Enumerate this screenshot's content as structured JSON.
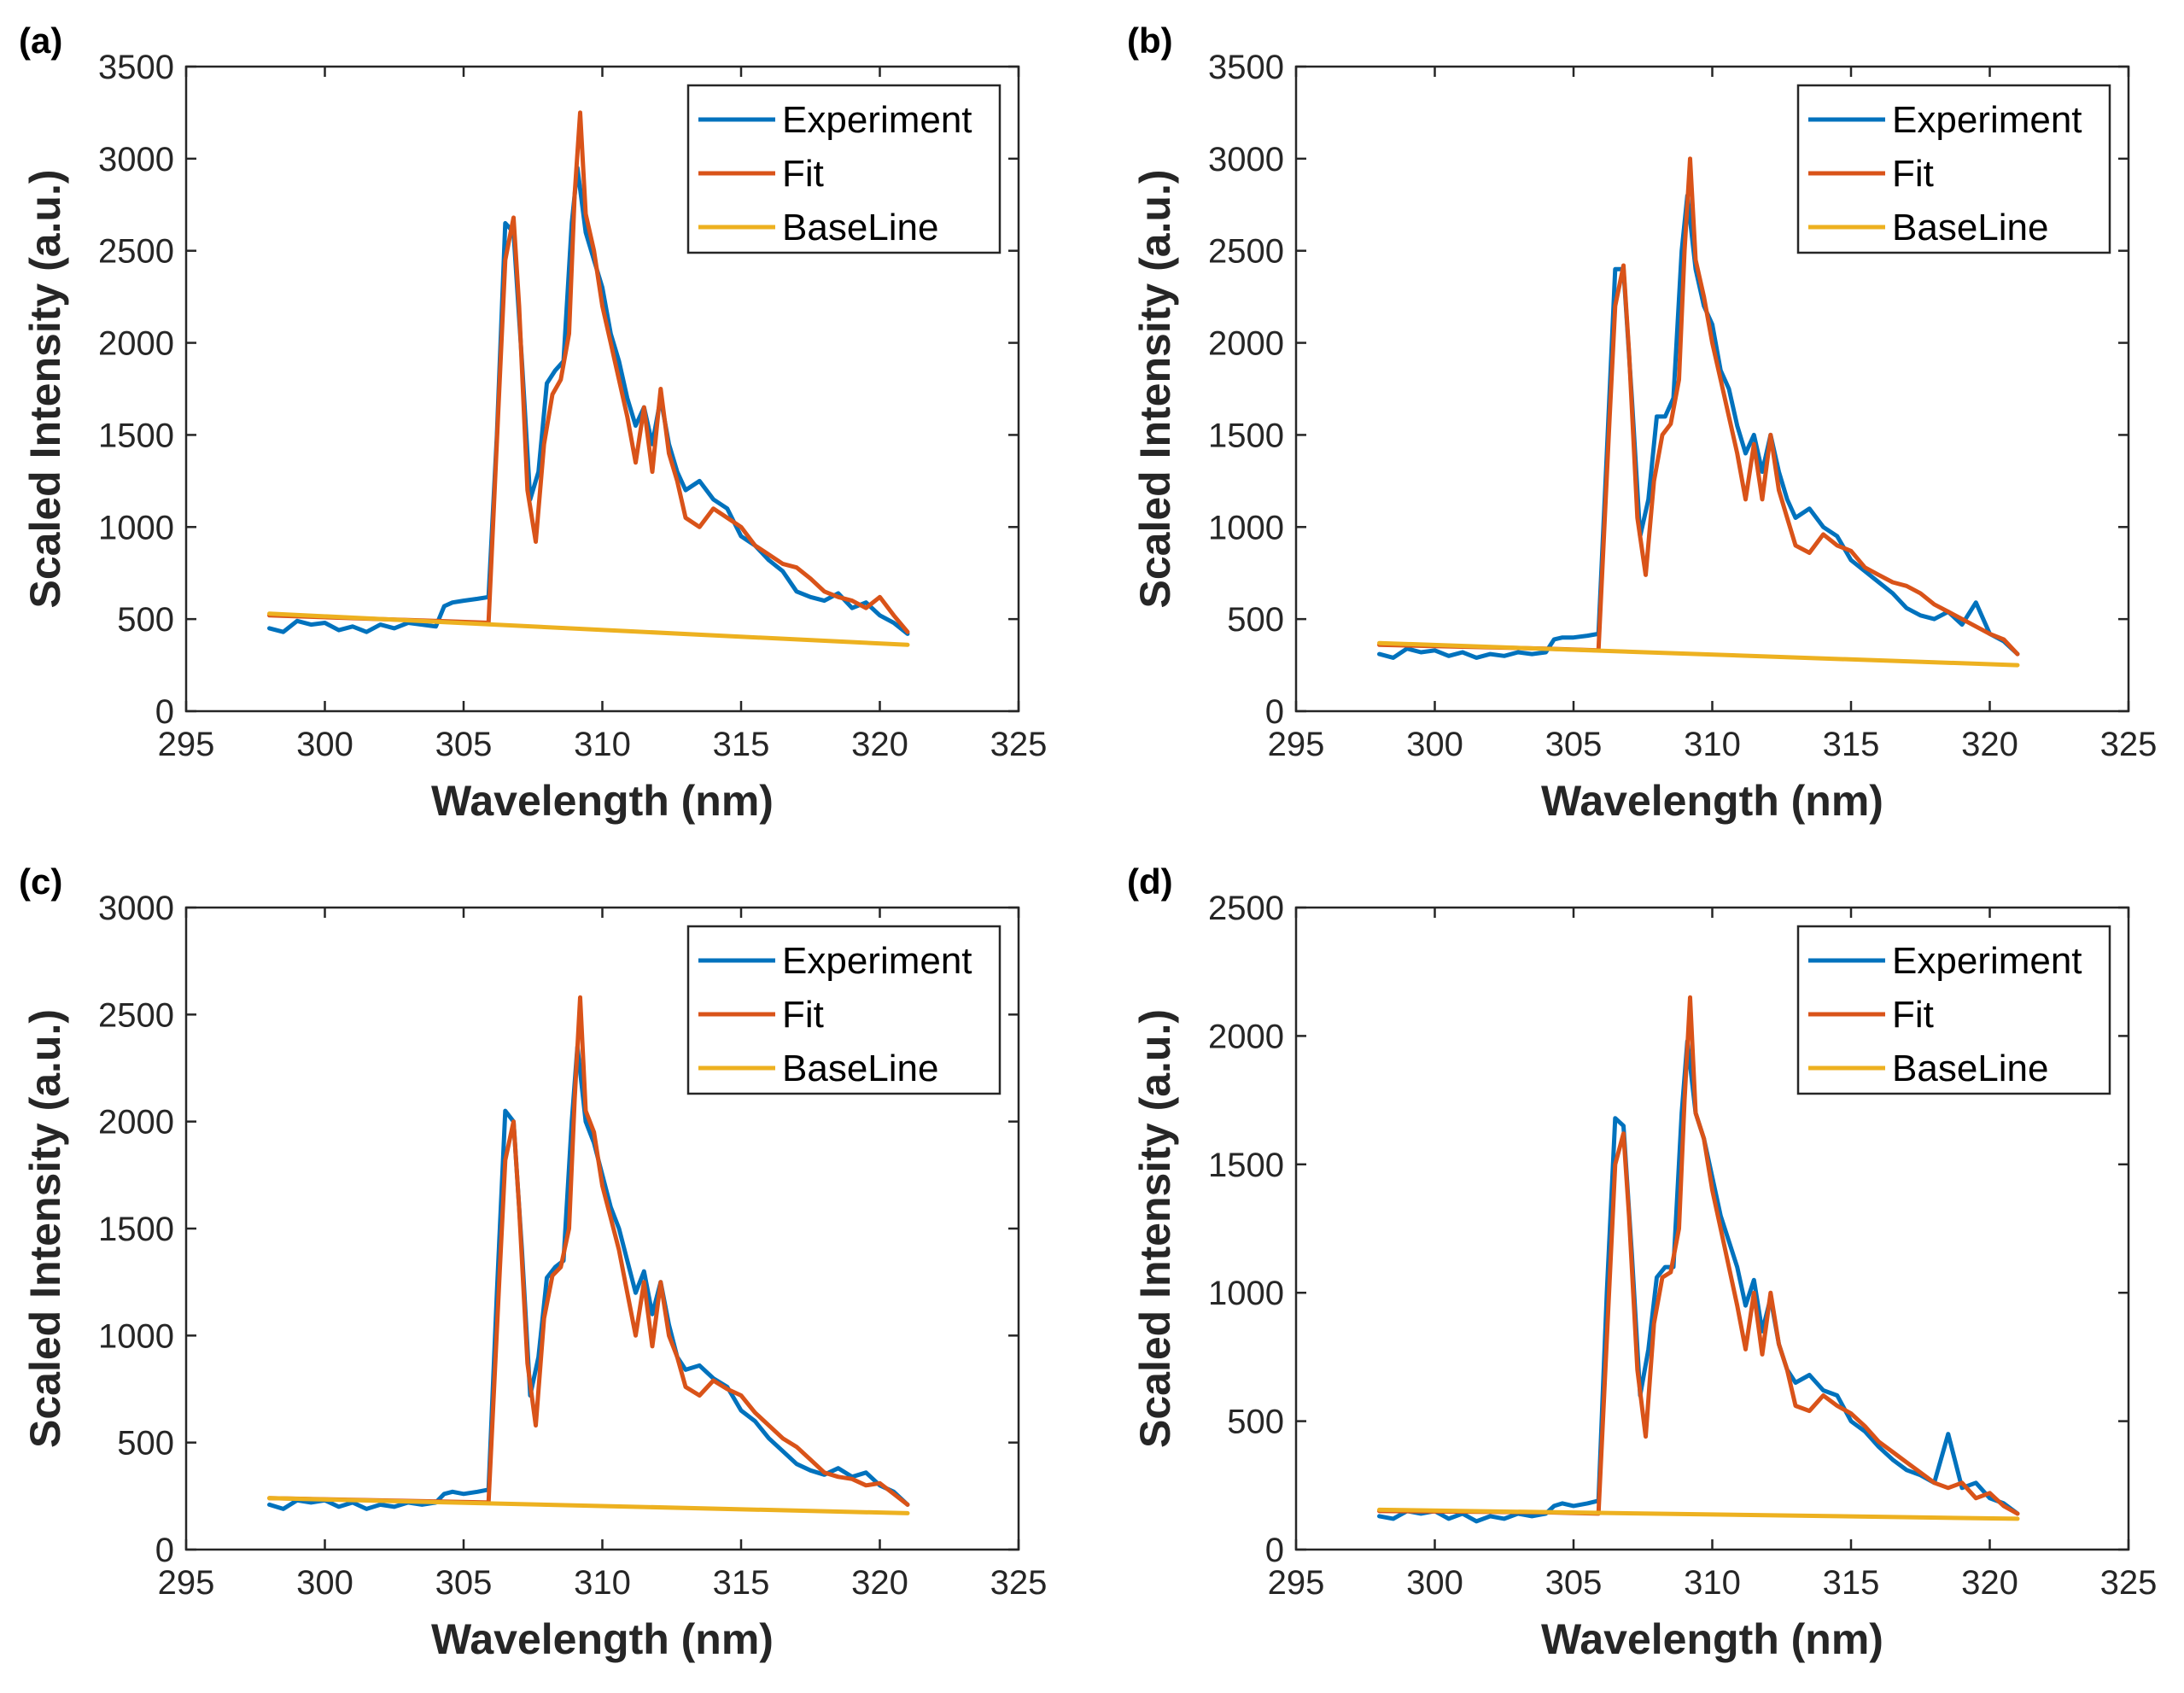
{
  "colors": {
    "experiment": "#0072BD",
    "fit": "#D95319",
    "baseline": "#EDB120",
    "axis": "#262626"
  },
  "chart_data": [
    {
      "panel_label": "(a)",
      "type": "line",
      "xlabel": "Wavelength (nm)",
      "ylabel": "Scaled Intensity (a.u.)",
      "xlim": [
        295,
        325
      ],
      "ylim": [
        0,
        3500
      ],
      "xticks": [
        "295",
        "300",
        "305",
        "310",
        "315",
        "320",
        "325"
      ],
      "yticks": [
        "0",
        "500",
        "1000",
        "1500",
        "2000",
        "2500",
        "3000",
        "3500"
      ],
      "legend": [
        "Experiment",
        "Fit",
        "BaseLine"
      ],
      "legend_position": "top-right",
      "series": [
        {
          "name": "Experiment",
          "x": [
            298.0,
            298.5,
            299.0,
            299.5,
            300.0,
            300.5,
            301.0,
            301.5,
            302.0,
            302.5,
            303.0,
            303.5,
            304.0,
            304.3,
            304.6,
            305.0,
            305.5,
            305.9,
            306.2,
            306.5,
            306.8,
            307.1,
            307.4,
            307.7,
            308.0,
            308.3,
            308.6,
            308.9,
            309.1,
            309.4,
            309.7,
            310.0,
            310.3,
            310.6,
            310.9,
            311.2,
            311.5,
            311.8,
            312.1,
            312.4,
            312.7,
            313.0,
            313.5,
            314.0,
            314.5,
            315.0,
            315.5,
            316.0,
            316.5,
            317.0,
            317.5,
            318.0,
            318.5,
            319.0,
            319.5,
            320.0,
            320.5,
            321.0
          ],
          "y": [
            450,
            430,
            490,
            470,
            480,
            440,
            460,
            430,
            470,
            450,
            480,
            470,
            460,
            570,
            590,
            600,
            610,
            620,
            1500,
            2650,
            2600,
            1900,
            1150,
            1300,
            1780,
            1850,
            1900,
            2650,
            2950,
            2600,
            2450,
            2300,
            2050,
            1900,
            1700,
            1550,
            1650,
            1450,
            1700,
            1450,
            1300,
            1200,
            1250,
            1150,
            1100,
            950,
            900,
            820,
            760,
            650,
            620,
            600,
            640,
            560,
            590,
            520,
            480,
            420
          ]
        },
        {
          "name": "Fit",
          "x": [
            298.0,
            304.0,
            305.9,
            306.3,
            306.5,
            306.8,
            307.0,
            307.3,
            307.6,
            307.9,
            308.2,
            308.5,
            308.8,
            309.0,
            309.2,
            309.4,
            309.7,
            310.0,
            310.3,
            310.6,
            310.9,
            311.2,
            311.5,
            311.8,
            312.1,
            312.4,
            312.7,
            313.0,
            313.5,
            314.0,
            314.5,
            315.0,
            315.5,
            316.0,
            316.5,
            317.0,
            317.5,
            318.0,
            318.5,
            319.0,
            319.5,
            320.0,
            320.5,
            321.0
          ],
          "y": [
            520,
            490,
            480,
            1800,
            2450,
            2680,
            2200,
            1200,
            920,
            1450,
            1720,
            1800,
            2050,
            2800,
            3250,
            2700,
            2500,
            2200,
            2000,
            1800,
            1600,
            1350,
            1650,
            1300,
            1750,
            1400,
            1250,
            1050,
            1000,
            1100,
            1050,
            1000,
            900,
            850,
            800,
            780,
            720,
            650,
            620,
            600,
            560,
            620,
            520,
            430
          ]
        },
        {
          "name": "BaseLine",
          "x": [
            298,
            321
          ],
          "y": [
            530,
            360
          ]
        }
      ]
    },
    {
      "panel_label": "(b)",
      "type": "line",
      "xlabel": "Wavelength (nm)",
      "ylabel": "Scaled Intensity (a.u.)",
      "xlim": [
        295,
        325
      ],
      "ylim": [
        0,
        3500
      ],
      "xticks": [
        "295",
        "300",
        "305",
        "310",
        "315",
        "320",
        "325"
      ],
      "yticks": [
        "0",
        "500",
        "1000",
        "1500",
        "2000",
        "2500",
        "3000",
        "3500"
      ],
      "legend": [
        "Experiment",
        "Fit",
        "BaseLine"
      ],
      "legend_position": "top-right",
      "series": [
        {
          "name": "Experiment",
          "x": [
            298.0,
            298.5,
            299.0,
            299.5,
            300.0,
            300.5,
            301.0,
            301.5,
            302.0,
            302.5,
            303.0,
            303.5,
            304.0,
            304.3,
            304.6,
            305.0,
            305.5,
            305.9,
            306.2,
            306.5,
            306.8,
            307.1,
            307.4,
            307.7,
            308.0,
            308.3,
            308.6,
            308.9,
            309.1,
            309.4,
            309.7,
            310.0,
            310.3,
            310.6,
            310.9,
            311.2,
            311.5,
            311.8,
            312.1,
            312.4,
            312.7,
            313.0,
            313.5,
            314.0,
            314.5,
            315.0,
            315.5,
            316.0,
            316.5,
            317.0,
            317.5,
            318.0,
            318.5,
            319.0,
            319.5,
            320.0,
            320.5,
            321.0
          ],
          "y": [
            310,
            290,
            340,
            320,
            330,
            300,
            320,
            290,
            310,
            300,
            320,
            310,
            320,
            390,
            400,
            400,
            410,
            420,
            1400,
            2400,
            2400,
            1700,
            950,
            1150,
            1600,
            1600,
            1700,
            2500,
            2800,
            2400,
            2200,
            2100,
            1850,
            1750,
            1550,
            1400,
            1500,
            1300,
            1500,
            1300,
            1150,
            1050,
            1100,
            1000,
            950,
            820,
            760,
            700,
            640,
            560,
            520,
            500,
            540,
            470,
            590,
            420,
            380,
            310
          ]
        },
        {
          "name": "Fit",
          "x": [
            298.0,
            304.0,
            305.9,
            306.3,
            306.5,
            306.8,
            307.0,
            307.3,
            307.6,
            307.9,
            308.2,
            308.5,
            308.8,
            309.0,
            309.2,
            309.4,
            309.7,
            310.0,
            310.3,
            310.6,
            310.9,
            311.2,
            311.5,
            311.8,
            312.1,
            312.4,
            312.7,
            313.0,
            313.5,
            314.0,
            314.5,
            315.0,
            315.5,
            316.0,
            316.5,
            317.0,
            317.5,
            318.0,
            318.5,
            319.0,
            319.5,
            320.0,
            320.5,
            321.0
          ],
          "y": [
            360,
            340,
            330,
            1600,
            2200,
            2420,
            1950,
            1050,
            740,
            1250,
            1500,
            1560,
            1800,
            2500,
            3000,
            2450,
            2250,
            2000,
            1800,
            1600,
            1400,
            1150,
            1450,
            1150,
            1500,
            1200,
            1050,
            900,
            860,
            960,
            900,
            870,
            780,
            740,
            700,
            680,
            640,
            580,
            540,
            500,
            460,
            420,
            390,
            310
          ]
        },
        {
          "name": "BaseLine",
          "x": [
            298,
            321
          ],
          "y": [
            370,
            250
          ]
        }
      ]
    },
    {
      "panel_label": "(c)",
      "type": "line",
      "xlabel": "Wavelength (nm)",
      "ylabel": "Scaled Intensity (a.u.)",
      "xlim": [
        295,
        325
      ],
      "ylim": [
        0,
        3000
      ],
      "xticks": [
        "295",
        "300",
        "305",
        "310",
        "315",
        "320",
        "325"
      ],
      "yticks": [
        "0",
        "500",
        "1000",
        "1500",
        "2000",
        "2500",
        "3000"
      ],
      "legend": [
        "Experiment",
        "Fit",
        "BaseLine"
      ],
      "legend_position": "top-right",
      "series": [
        {
          "name": "Experiment",
          "x": [
            298.0,
            298.5,
            299.0,
            299.5,
            300.0,
            300.5,
            301.0,
            301.5,
            302.0,
            302.5,
            303.0,
            303.5,
            304.0,
            304.3,
            304.6,
            305.0,
            305.5,
            305.9,
            306.2,
            306.5,
            306.8,
            307.1,
            307.4,
            307.7,
            308.0,
            308.3,
            308.6,
            308.9,
            309.1,
            309.4,
            309.7,
            310.0,
            310.3,
            310.6,
            310.9,
            311.2,
            311.5,
            311.8,
            312.1,
            312.4,
            312.7,
            313.0,
            313.5,
            314.0,
            314.5,
            315.0,
            315.5,
            316.0,
            316.5,
            317.0,
            317.5,
            318.0,
            318.5,
            319.0,
            319.5,
            320.0,
            320.5,
            321.0
          ],
          "y": [
            210,
            190,
            230,
            220,
            230,
            200,
            220,
            190,
            210,
            200,
            220,
            210,
            220,
            260,
            270,
            260,
            270,
            280,
            1200,
            2050,
            2000,
            1400,
            720,
            900,
            1270,
            1320,
            1350,
            2000,
            2350,
            2000,
            1900,
            1750,
            1600,
            1500,
            1350,
            1200,
            1300,
            1100,
            1250,
            1050,
            900,
            840,
            860,
            800,
            760,
            650,
            600,
            520,
            460,
            400,
            370,
            350,
            380,
            340,
            360,
            300,
            270,
            210
          ]
        },
        {
          "name": "Fit",
          "x": [
            298.0,
            304.0,
            305.9,
            306.3,
            306.5,
            306.8,
            307.0,
            307.3,
            307.6,
            307.9,
            308.2,
            308.5,
            308.8,
            309.0,
            309.2,
            309.4,
            309.7,
            310.0,
            310.3,
            310.6,
            310.9,
            311.2,
            311.5,
            311.8,
            312.1,
            312.4,
            312.7,
            313.0,
            313.5,
            314.0,
            314.5,
            315.0,
            315.5,
            316.0,
            316.5,
            317.0,
            317.5,
            318.0,
            318.5,
            319.0,
            319.5,
            320.0,
            320.5,
            321.0
          ],
          "y": [
            240,
            225,
            220,
            1300,
            1820,
            2000,
            1600,
            870,
            580,
            1080,
            1280,
            1320,
            1500,
            2100,
            2580,
            2050,
            1950,
            1700,
            1550,
            1400,
            1200,
            1000,
            1250,
            950,
            1250,
            1000,
            900,
            760,
            720,
            790,
            750,
            720,
            640,
            580,
            520,
            480,
            420,
            360,
            340,
            330,
            300,
            310,
            260,
            210
          ]
        },
        {
          "name": "BaseLine",
          "x": [
            298,
            321
          ],
          "y": [
            240,
            170
          ]
        }
      ]
    },
    {
      "panel_label": "(d)",
      "type": "line",
      "xlabel": "Wavelength (nm)",
      "ylabel": "Scaled Intensity (a.u.)",
      "xlim": [
        295,
        325
      ],
      "ylim": [
        0,
        2500
      ],
      "xticks": [
        "295",
        "300",
        "305",
        "310",
        "315",
        "320",
        "325"
      ],
      "yticks": [
        "0",
        "500",
        "1000",
        "1500",
        "2000",
        "2500"
      ],
      "legend": [
        "Experiment",
        "Fit",
        "BaseLine"
      ],
      "legend_position": "top-right",
      "series": [
        {
          "name": "Experiment",
          "x": [
            298.0,
            298.5,
            299.0,
            299.5,
            300.0,
            300.5,
            301.0,
            301.5,
            302.0,
            302.5,
            303.0,
            303.5,
            304.0,
            304.3,
            304.6,
            305.0,
            305.5,
            305.9,
            306.2,
            306.5,
            306.8,
            307.1,
            307.4,
            307.7,
            308.0,
            308.3,
            308.6,
            308.9,
            309.1,
            309.4,
            309.7,
            310.0,
            310.3,
            310.6,
            310.9,
            311.2,
            311.5,
            311.8,
            312.1,
            312.4,
            312.7,
            313.0,
            313.5,
            314.0,
            314.5,
            315.0,
            315.5,
            316.0,
            316.5,
            317.0,
            317.5,
            318.0,
            318.5,
            319.0,
            319.5,
            320.0,
            320.5,
            321.0
          ],
          "y": [
            130,
            120,
            150,
            140,
            150,
            120,
            140,
            110,
            130,
            120,
            140,
            130,
            140,
            170,
            180,
            170,
            180,
            190,
            1000,
            1680,
            1650,
            1150,
            600,
            780,
            1060,
            1100,
            1100,
            1700,
            1980,
            1700,
            1600,
            1450,
            1300,
            1200,
            1100,
            950,
            1050,
            850,
            980,
            800,
            700,
            650,
            680,
            620,
            600,
            500,
            460,
            400,
            350,
            310,
            290,
            260,
            450,
            240,
            260,
            200,
            180,
            140
          ]
        },
        {
          "name": "Fit",
          "x": [
            298.0,
            304.0,
            305.9,
            306.3,
            306.5,
            306.8,
            307.0,
            307.3,
            307.6,
            307.9,
            308.2,
            308.5,
            308.8,
            309.0,
            309.2,
            309.4,
            309.7,
            310.0,
            310.3,
            310.6,
            310.9,
            311.2,
            311.5,
            311.8,
            312.1,
            312.4,
            312.7,
            313.0,
            313.5,
            314.0,
            314.5,
            315.0,
            315.5,
            316.0,
            316.5,
            317.0,
            317.5,
            318.0,
            318.5,
            319.0,
            319.5,
            320.0,
            320.5,
            321.0
          ],
          "y": [
            150,
            145,
            140,
            1050,
            1500,
            1620,
            1300,
            700,
            440,
            880,
            1060,
            1080,
            1250,
            1750,
            2150,
            1700,
            1600,
            1400,
            1250,
            1100,
            950,
            780,
            1000,
            760,
            1000,
            800,
            700,
            560,
            540,
            600,
            560,
            530,
            480,
            420,
            380,
            340,
            300,
            260,
            240,
            260,
            200,
            220,
            170,
            140
          ]
        },
        {
          "name": "BaseLine",
          "x": [
            298,
            321
          ],
          "y": [
            155,
            120
          ]
        }
      ]
    }
  ]
}
